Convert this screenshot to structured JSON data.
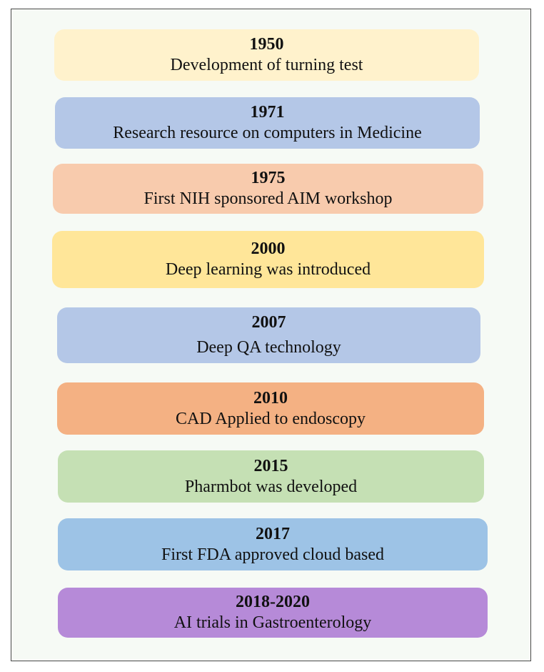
{
  "timeline": {
    "events": [
      {
        "year": "1950",
        "description": "Development of turning test",
        "color": "#fff2cc"
      },
      {
        "year": "1971",
        "description": "Research resource on computers in Medicine",
        "color": "#b4c7e7"
      },
      {
        "year": "1975",
        "description": "First NIH sponsored AIM workshop",
        "color": "#f8cbad"
      },
      {
        "year": "2000",
        "description": "Deep learning was introduced",
        "color": "#ffe699"
      },
      {
        "year": "2007",
        "description": "Deep QA technology",
        "color": "#b4c7e7"
      },
      {
        "year": "2010",
        "description": "CAD Applied to endoscopy",
        "color": "#f4b183"
      },
      {
        "year": "2015",
        "description": "Pharmbot was developed",
        "color": "#c5e0b4"
      },
      {
        "year": "2017",
        "description": "First FDA approved cloud based",
        "color": "#9dc3e6"
      },
      {
        "year": "2018-2020",
        "description": "AI trials in Gastroenterology",
        "color": "#b68ad8"
      }
    ]
  }
}
